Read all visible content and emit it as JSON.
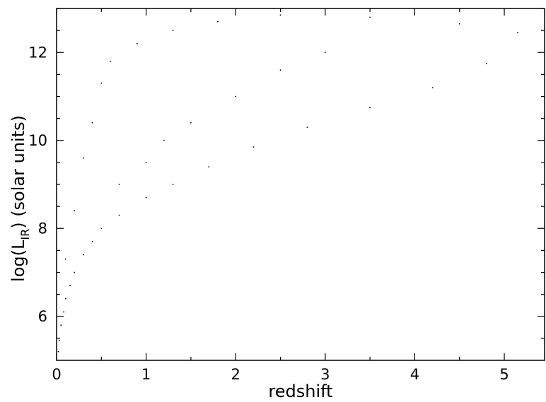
{
  "chart_data": {
    "type": "scatter",
    "xlabel": "redshift",
    "ylabel_main": "log(L",
    "ylabel_sub": "IR",
    "ylabel_rest": ") (solar units)",
    "xlim": [
      0,
      5.45
    ],
    "ylim": [
      5.0,
      13.0
    ],
    "x_ticks": [
      0,
      1,
      2,
      3,
      4,
      5
    ],
    "x_tick_labels": [
      "0",
      "1",
      "2",
      "3",
      "4",
      "5"
    ],
    "y_ticks": [
      6,
      8,
      10,
      12
    ],
    "y_tick_labels": [
      "6",
      "8",
      "10",
      "12"
    ],
    "grid": false,
    "marker_color": "#000000",
    "series": [
      {
        "points": [
          [
            0.02,
            5.2
          ],
          [
            0.03,
            5.45
          ],
          [
            0.05,
            5.8
          ],
          [
            0.08,
            6.1
          ],
          [
            0.1,
            6.4
          ],
          [
            0.15,
            6.7
          ],
          [
            0.2,
            7.0
          ],
          [
            0.3,
            7.4
          ],
          [
            0.4,
            7.7
          ],
          [
            0.5,
            8.0
          ],
          [
            0.7,
            8.3
          ],
          [
            1.0,
            8.7
          ],
          [
            1.3,
            9.0
          ],
          [
            1.7,
            9.4
          ],
          [
            2.2,
            9.85
          ],
          [
            2.8,
            10.3
          ],
          [
            3.5,
            10.75
          ],
          [
            4.2,
            11.2
          ],
          [
            4.8,
            11.75
          ],
          [
            5.15,
            12.45
          ],
          [
            0.1,
            7.3
          ],
          [
            0.2,
            8.4
          ],
          [
            0.3,
            9.6
          ],
          [
            0.4,
            10.4
          ],
          [
            0.5,
            11.3
          ],
          [
            0.6,
            11.8
          ],
          [
            0.9,
            12.2
          ],
          [
            1.3,
            12.5
          ],
          [
            1.8,
            12.7
          ],
          [
            2.5,
            12.85
          ],
          [
            3.5,
            12.8
          ],
          [
            4.5,
            12.65
          ],
          [
            0.7,
            9.0
          ],
          [
            1.0,
            9.5
          ],
          [
            1.2,
            10.0
          ],
          [
            1.5,
            10.4
          ],
          [
            2.0,
            11.0
          ],
          [
            2.5,
            11.6
          ],
          [
            3.0,
            12.0
          ]
        ]
      }
    ]
  }
}
